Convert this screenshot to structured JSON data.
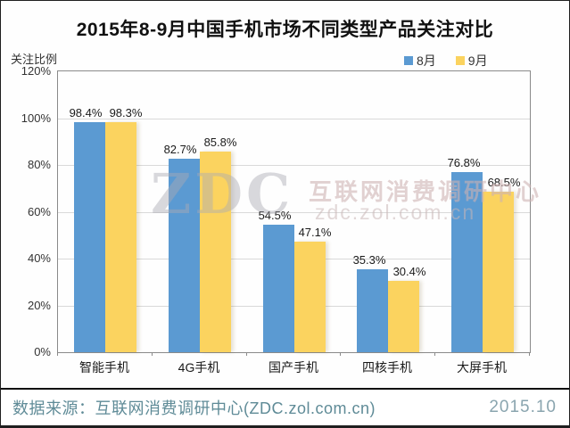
{
  "title": "2015年8-9月中国手机市场不同类型产品关注对比",
  "chart_data": {
    "type": "bar",
    "title": "2015年8-9月中国手机市场不同类型产品关注对比",
    "ylabel": "关注比例",
    "xlabel": "",
    "ylim": [
      0,
      120
    ],
    "ytick_step": 20,
    "ytick_suffix": "%",
    "grid": true,
    "legend_position": "top-right",
    "categories": [
      "智能手机",
      "4G手机",
      "国产手机",
      "四核手机",
      "大屏手机"
    ],
    "series": [
      {
        "name": "8月",
        "color": "#5b9ad2",
        "values": [
          98.4,
          82.7,
          54.5,
          35.3,
          76.8
        ]
      },
      {
        "name": "9月",
        "color": "#fbd35f",
        "values": [
          98.3,
          85.8,
          47.1,
          30.4,
          68.5
        ]
      }
    ],
    "value_label_suffix": "%"
  },
  "watermark": {
    "logo": "ZDC",
    "line1": "互联网消费调研中心",
    "line2": "zdc.zol.com.cn"
  },
  "footer": {
    "source": "数据来源：互联网消费调研中心(ZDC.zol.com.cn)",
    "date": "2015.10"
  },
  "colors": {
    "series_aug": "#5b9ad2",
    "series_sep": "#fbd35f",
    "gridline": "#d9d9d9",
    "plot_border": "#8a8a8a",
    "footer_text": "#5f8b97",
    "footer_date": "#8aa5af"
  }
}
